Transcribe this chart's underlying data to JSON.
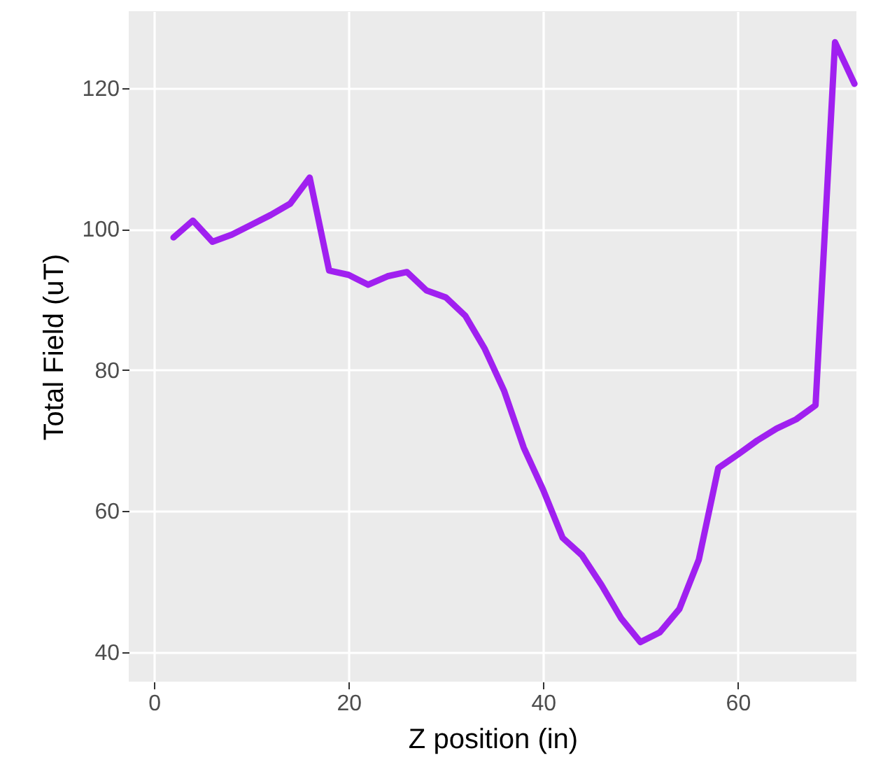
{
  "chart_data": {
    "type": "line",
    "xlabel": "Z position (in)",
    "ylabel": "Total Field (uT)",
    "x": [
      2,
      4,
      6,
      8,
      10,
      12,
      14,
      16,
      18,
      20,
      22,
      24,
      26,
      28,
      30,
      32,
      34,
      36,
      38,
      40,
      42,
      44,
      46,
      48,
      50,
      52,
      54,
      56,
      58,
      60,
      62,
      64,
      66,
      68,
      70,
      72
    ],
    "series": [
      {
        "color": "#a020f0",
        "values": [
          98.8,
          101.2,
          98.2,
          99.2,
          100.6,
          102,
          103.6,
          107.3,
          94.1,
          93.5,
          92.1,
          93.3,
          93.9,
          91.3,
          90.3,
          87.7,
          83,
          77,
          69,
          63,
          56.2,
          53.7,
          49.5,
          44.8,
          41.4,
          42.8,
          46.1,
          53.1,
          66.1,
          68,
          70,
          71.7,
          73,
          75,
          126.5,
          120.6
        ]
      }
    ],
    "xlim": [
      -2.6,
      72.2
    ],
    "xticks": [
      0,
      20,
      40,
      60
    ],
    "ylim": [
      35.8,
      130.9
    ],
    "yticks": [
      40,
      60,
      80,
      100,
      120
    ],
    "grid": true,
    "line_style": "solid",
    "marker": "none"
  }
}
